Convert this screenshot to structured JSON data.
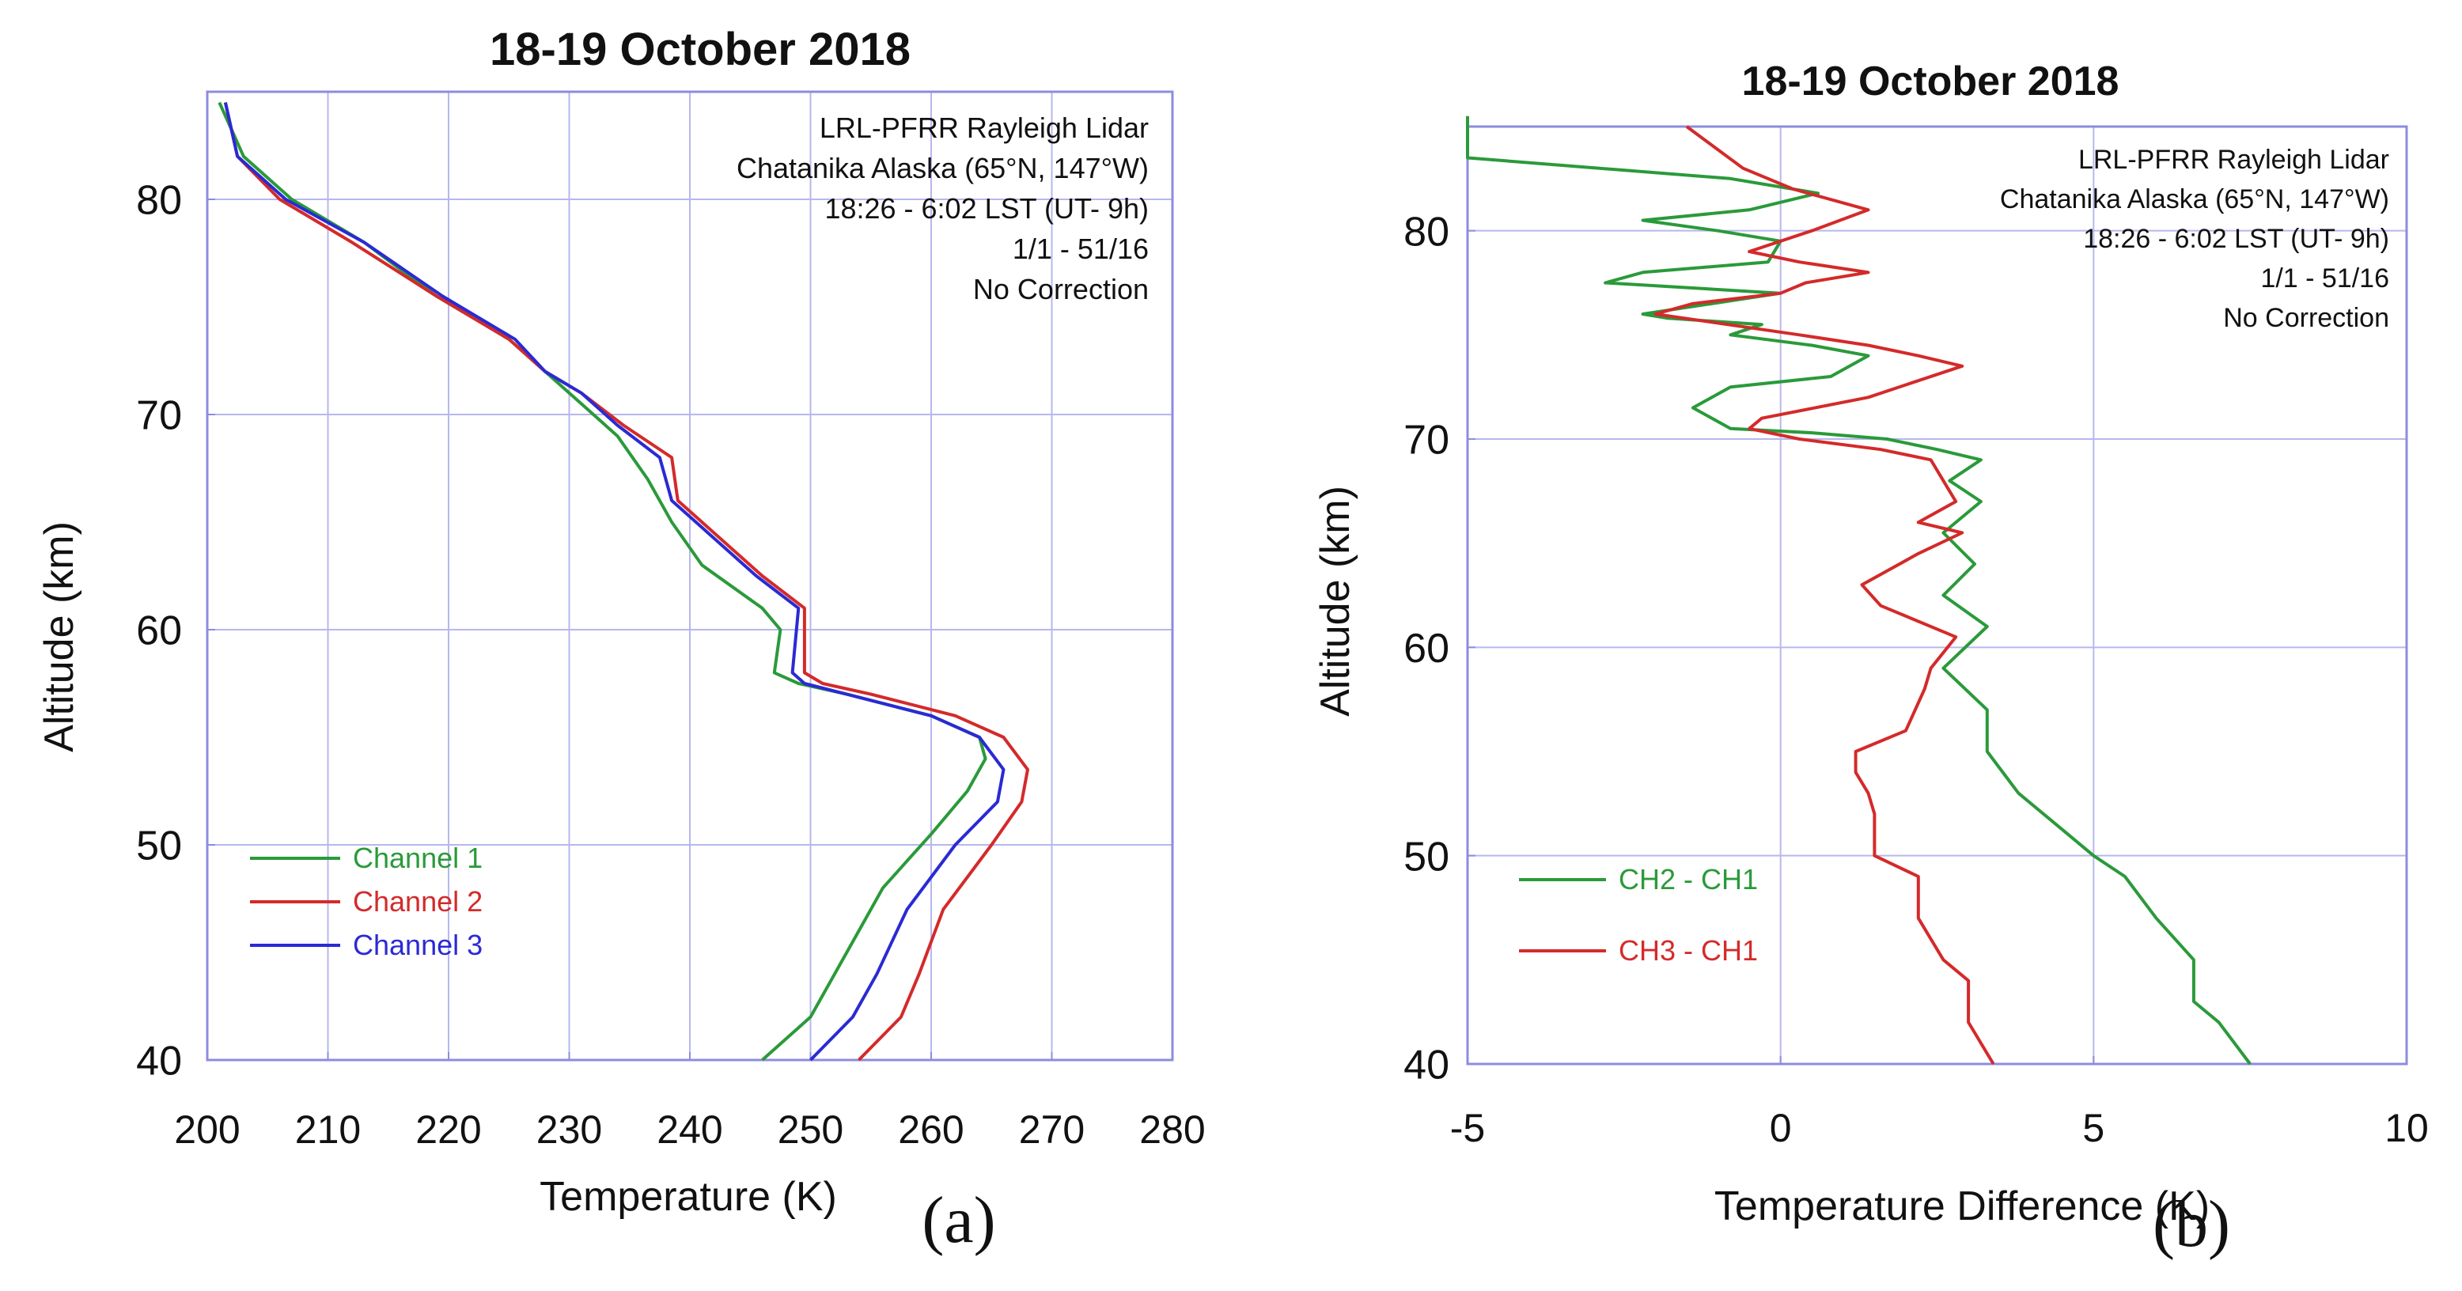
{
  "chart_data": [
    {
      "type": "line",
      "panel_label": "(a)",
      "title": "18-19 October 2018",
      "xlabel": "Temperature (K)",
      "ylabel": "Altitude (km)",
      "xlim": [
        200,
        280
      ],
      "ylim": [
        40,
        85
      ],
      "xticks": [
        200,
        210,
        220,
        230,
        240,
        250,
        260,
        270,
        280
      ],
      "yticks": [
        40,
        50,
        60,
        70,
        80
      ],
      "grid": true,
      "legend_position": "lower-left",
      "info": [
        "LRL-PFRR Rayleigh Lidar",
        "Chatanika Alaska (65°N, 147°W)",
        "18:26 - 6:02 LST (UT- 9h)",
        "1/1 - 51/16",
        "No Correction"
      ],
      "series": [
        {
          "name": "Channel 1",
          "color": "#2a9a3a",
          "x": [
            246,
            250,
            253,
            256,
            260,
            263,
            264.5,
            264,
            260,
            253,
            249,
            247,
            247.5,
            246,
            241,
            238.5,
            236.5,
            234,
            231,
            228,
            225,
            219,
            213,
            207,
            203,
            201
          ],
          "y": [
            40,
            42,
            45,
            48,
            50.5,
            52.5,
            54,
            55,
            56,
            57,
            57.5,
            58,
            60,
            61,
            63,
            65,
            67,
            69,
            70.5,
            72,
            73.5,
            75.5,
            78,
            80,
            82,
            84.5
          ]
        },
        {
          "name": "Channel 2",
          "color": "#d42a2a",
          "x": [
            254,
            257.5,
            259,
            261,
            265,
            267.5,
            268,
            266,
            262,
            255,
            251,
            249.5,
            249.5,
            246,
            242,
            239,
            238.5,
            234.5,
            231,
            228,
            225,
            219,
            212,
            206,
            202.5,
            201.5
          ],
          "y": [
            40,
            42,
            44,
            47,
            50,
            52,
            53.5,
            55,
            56,
            57,
            57.5,
            58,
            61,
            62.5,
            64.5,
            66,
            68,
            69.5,
            71,
            72,
            73.5,
            75.5,
            78,
            80,
            82,
            84.5
          ]
        },
        {
          "name": "Channel 3",
          "color": "#2a2ad4",
          "x": [
            250,
            253.5,
            255.5,
            258,
            262,
            265.5,
            266,
            264,
            260,
            253,
            249.5,
            248.5,
            249,
            245.5,
            241.5,
            238.5,
            237.5,
            234,
            231,
            228,
            225.5,
            219.5,
            213,
            206.5,
            202.5,
            201.5
          ],
          "y": [
            40,
            42,
            44,
            47,
            50,
            52,
            53.5,
            55,
            56,
            57,
            57.5,
            58,
            61,
            62.5,
            64.5,
            66,
            68,
            69.5,
            71,
            72,
            73.5,
            75.5,
            78,
            80,
            82,
            84.5
          ]
        }
      ]
    },
    {
      "type": "line",
      "panel_label": "(b)",
      "title": "18-19 October 2018",
      "xlabel": "Temperature Difference (K)",
      "ylabel": "Altitude (km)",
      "xlim": [
        -5,
        10
      ],
      "ylim": [
        40,
        85
      ],
      "xticks": [
        -5,
        0,
        5,
        10
      ],
      "yticks": [
        40,
        50,
        60,
        70,
        80
      ],
      "grid": true,
      "legend_position": "lower-left",
      "info": [
        "LRL-PFRR Rayleigh Lidar",
        "Chatanika Alaska (65°N, 147°W)",
        "18:26 - 6:02 LST (UT- 9h)",
        "1/1 - 51/16",
        "No Correction"
      ],
      "series": [
        {
          "name": "CH2 - CH1",
          "color": "#2a9a3a",
          "x": [
            7.5,
            7.0,
            6.6,
            6.6,
            6.0,
            5.5,
            5.0,
            4.6,
            3.8,
            3.3,
            3.3,
            2.6,
            3.3,
            2.6,
            3.1,
            2.6,
            3.2,
            2.7,
            3.2,
            2.5,
            1.7,
            0.5,
            -0.8,
            -1.4,
            -0.8,
            0.8,
            1.4,
            0.5,
            -0.8,
            -0.3,
            -1.8,
            -2.2,
            0.0,
            -2.8,
            -2.2,
            -0.2,
            0.0,
            -1.0,
            -2.2,
            -0.5,
            0.6,
            -0.8,
            -5.0,
            -5.0
          ],
          "y": [
            40,
            42,
            43,
            45,
            47,
            49,
            50,
            51,
            53,
            55,
            57,
            59,
            61,
            62.5,
            64,
            65.5,
            67,
            68,
            69,
            69.5,
            70,
            70.3,
            70.5,
            71.5,
            72.5,
            73,
            74,
            74.5,
            75,
            75.5,
            75.8,
            76,
            77,
            77.5,
            78,
            78.5,
            79.5,
            80,
            80.5,
            81,
            81.8,
            82.5,
            83.5,
            85.5
          ]
        },
        {
          "name": "CH3 - CH1",
          "color": "#d42a2a",
          "x": [
            3.4,
            3.0,
            3.0,
            2.6,
            2.2,
            2.2,
            1.5,
            1.5,
            1.4,
            1.2,
            1.2,
            2.0,
            2.3,
            2.4,
            2.8,
            1.6,
            1.3,
            2.2,
            2.9,
            2.2,
            2.8,
            2.6,
            2.4,
            1.6,
            0.3,
            -0.5,
            -0.3,
            1.4,
            2.9,
            2.2,
            1.4,
            0.3,
            -2.0,
            -1.4,
            0.0,
            0.4,
            1.4,
            0.3,
            -0.5,
            0.5,
            1.4,
            0.2,
            -0.6,
            -1.5
          ],
          "y": [
            40,
            42,
            44,
            45,
            47,
            49,
            50,
            52,
            53,
            54,
            55,
            56,
            58,
            59,
            60.5,
            62,
            63,
            64.5,
            65.5,
            66,
            67,
            68,
            69,
            69.5,
            70,
            70.5,
            71,
            72,
            73.5,
            74,
            74.5,
            75,
            76,
            76.5,
            77,
            77.5,
            78,
            78.5,
            79,
            80,
            81,
            82,
            83,
            85
          ]
        }
      ]
    }
  ]
}
